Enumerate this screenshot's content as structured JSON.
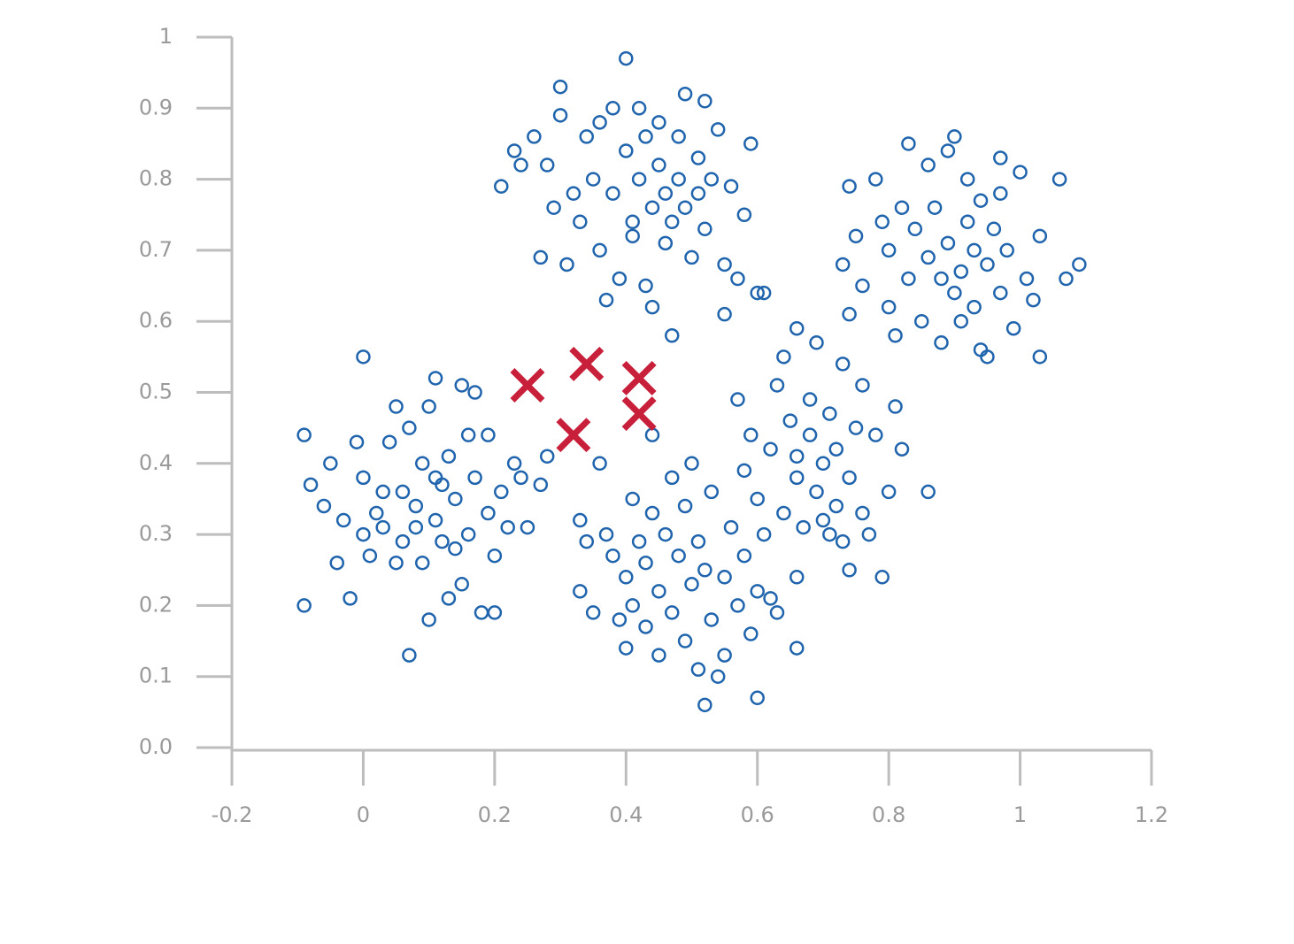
{
  "chart_data": {
    "type": "scatter",
    "xlim": [
      -0.2,
      1.2
    ],
    "ylim": [
      0,
      1
    ],
    "xticks": [
      -0.2,
      0,
      0.2,
      0.4,
      0.6,
      0.8,
      1,
      1.2
    ],
    "yticks": [
      {
        "value": 0,
        "label": "0.0"
      },
      0.1,
      0.2,
      0.3,
      0.4,
      0.5,
      0.6,
      0.7,
      0.8,
      0.9,
      1
    ],
    "series": [
      {
        "color": "#1f64ad",
        "marker": "o",
        "x": [
          -0.09,
          -0.08,
          -0.09,
          -0.06,
          -0.05,
          -0.04,
          -0.03,
          -0.02,
          -0.01,
          0.0,
          0.0,
          0.0,
          0.01,
          0.02,
          0.03,
          0.04,
          0.05,
          0.05,
          0.06,
          0.07,
          0.07,
          0.08,
          0.09,
          0.09,
          0.1,
          0.1,
          0.11,
          0.11,
          0.12,
          0.12,
          0.13,
          0.13,
          0.14,
          0.15,
          0.15,
          0.16,
          0.16,
          0.17,
          0.17,
          0.18,
          0.19,
          0.19,
          0.2,
          0.2,
          0.21,
          0.22,
          0.23,
          0.24,
          0.25,
          0.27,
          0.14,
          0.08,
          0.03,
          0.11,
          0.06,
          0.21,
          0.23,
          0.24,
          0.26,
          0.27,
          0.28,
          0.29,
          0.3,
          0.3,
          0.31,
          0.32,
          0.33,
          0.34,
          0.35,
          0.36,
          0.36,
          0.37,
          0.38,
          0.38,
          0.39,
          0.4,
          0.4,
          0.41,
          0.41,
          0.42,
          0.43,
          0.43,
          0.44,
          0.44,
          0.45,
          0.45,
          0.46,
          0.46,
          0.47,
          0.47,
          0.48,
          0.48,
          0.49,
          0.49,
          0.5,
          0.51,
          0.51,
          0.52,
          0.52,
          0.53,
          0.54,
          0.55,
          0.56,
          0.57,
          0.58,
          0.59,
          0.6,
          0.55,
          0.42,
          0.73,
          0.74,
          0.74,
          0.75,
          0.76,
          0.78,
          0.79,
          0.8,
          0.8,
          0.81,
          0.82,
          0.83,
          0.83,
          0.84,
          0.85,
          0.86,
          0.86,
          0.87,
          0.88,
          0.88,
          0.89,
          0.89,
          0.9,
          0.9,
          0.91,
          0.91,
          0.92,
          0.92,
          0.93,
          0.93,
          0.94,
          0.95,
          0.95,
          0.96,
          0.97,
          0.97,
          0.98,
          0.99,
          1.0,
          1.01,
          1.02,
          1.03,
          1.03,
          1.06,
          1.07,
          1.09,
          0.94,
          0.97,
          0.28,
          0.33,
          0.33,
          0.34,
          0.35,
          0.37,
          0.38,
          0.39,
          0.4,
          0.4,
          0.41,
          0.41,
          0.42,
          0.43,
          0.43,
          0.44,
          0.45,
          0.45,
          0.46,
          0.47,
          0.47,
          0.48,
          0.49,
          0.49,
          0.5,
          0.51,
          0.51,
          0.52,
          0.52,
          0.53,
          0.53,
          0.54,
          0.55,
          0.55,
          0.56,
          0.57,
          0.58,
          0.59,
          0.6,
          0.6,
          0.61,
          0.62,
          0.63,
          0.66,
          0.66,
          0.5,
          0.44,
          0.36,
          0.57,
          0.58,
          0.59,
          0.6,
          0.61,
          0.62,
          0.63,
          0.64,
          0.65,
          0.66,
          0.66,
          0.67,
          0.68,
          0.68,
          0.69,
          0.69,
          0.7,
          0.71,
          0.71,
          0.72,
          0.72,
          0.73,
          0.74,
          0.74,
          0.75,
          0.76,
          0.76,
          0.77,
          0.78,
          0.79,
          0.8,
          0.81,
          0.82,
          0.86,
          0.64,
          0.7,
          0.73,
          0.66
        ],
        "y": [
          0.44,
          0.37,
          0.2,
          0.34,
          0.4,
          0.26,
          0.32,
          0.21,
          0.43,
          0.55,
          0.38,
          0.3,
          0.27,
          0.33,
          0.31,
          0.43,
          0.48,
          0.26,
          0.36,
          0.13,
          0.45,
          0.34,
          0.4,
          0.26,
          0.18,
          0.48,
          0.52,
          0.32,
          0.37,
          0.29,
          0.41,
          0.21,
          0.35,
          0.51,
          0.23,
          0.44,
          0.3,
          0.38,
          0.5,
          0.19,
          0.33,
          0.44,
          0.27,
          0.19,
          0.36,
          0.31,
          0.4,
          0.38,
          0.31,
          0.37,
          0.28,
          0.31,
          0.36,
          0.38,
          0.29,
          0.79,
          0.84,
          0.82,
          0.86,
          0.69,
          0.82,
          0.76,
          0.93,
          0.89,
          0.68,
          0.78,
          0.74,
          0.86,
          0.8,
          0.88,
          0.7,
          0.63,
          0.78,
          0.9,
          0.66,
          0.97,
          0.84,
          0.74,
          0.72,
          0.8,
          0.65,
          0.86,
          0.62,
          0.76,
          0.88,
          0.82,
          0.71,
          0.78,
          0.74,
          0.58,
          0.8,
          0.86,
          0.92,
          0.76,
          0.69,
          0.83,
          0.78,
          0.91,
          0.73,
          0.8,
          0.87,
          0.68,
          0.79,
          0.66,
          0.75,
          0.85,
          0.64,
          0.61,
          0.9,
          0.68,
          0.79,
          0.61,
          0.72,
          0.65,
          0.8,
          0.74,
          0.7,
          0.62,
          0.58,
          0.76,
          0.85,
          0.66,
          0.73,
          0.6,
          0.82,
          0.69,
          0.76,
          0.66,
          0.57,
          0.84,
          0.71,
          0.86,
          0.64,
          0.67,
          0.6,
          0.74,
          0.8,
          0.7,
          0.62,
          0.77,
          0.68,
          0.55,
          0.73,
          0.83,
          0.64,
          0.7,
          0.59,
          0.81,
          0.66,
          0.63,
          0.55,
          0.72,
          0.8,
          0.66,
          0.68,
          0.56,
          0.78,
          0.41,
          0.32,
          0.22,
          0.29,
          0.19,
          0.3,
          0.27,
          0.18,
          0.14,
          0.24,
          0.35,
          0.2,
          0.29,
          0.17,
          0.26,
          0.33,
          0.13,
          0.22,
          0.3,
          0.38,
          0.19,
          0.27,
          0.15,
          0.34,
          0.23,
          0.11,
          0.29,
          0.06,
          0.25,
          0.18,
          0.36,
          0.1,
          0.24,
          0.13,
          0.31,
          0.2,
          0.27,
          0.16,
          0.22,
          0.07,
          0.3,
          0.21,
          0.19,
          0.14,
          0.24,
          0.4,
          0.44,
          0.4,
          0.49,
          0.39,
          0.44,
          0.35,
          0.64,
          0.42,
          0.51,
          0.33,
          0.46,
          0.59,
          0.38,
          0.31,
          0.44,
          0.49,
          0.36,
          0.57,
          0.4,
          0.3,
          0.47,
          0.34,
          0.42,
          0.54,
          0.38,
          0.25,
          0.45,
          0.33,
          0.51,
          0.3,
          0.44,
          0.24,
          0.36,
          0.48,
          0.42,
          0.36,
          0.55,
          0.32,
          0.29,
          0.41
        ]
      },
      {
        "color": "#c8203a",
        "marker": "x",
        "x": [
          0.25,
          0.34,
          0.42,
          0.42,
          0.32
        ],
        "y": [
          0.51,
          0.54,
          0.52,
          0.47,
          0.44
        ]
      }
    ]
  }
}
